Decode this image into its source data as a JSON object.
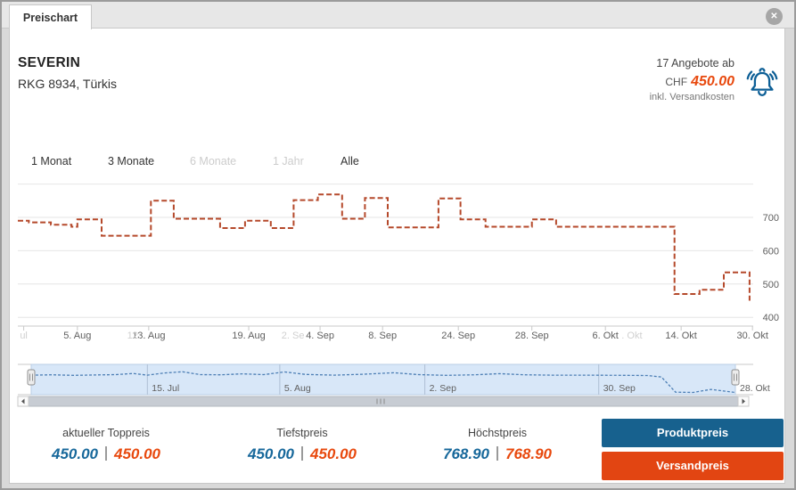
{
  "window": {
    "tab": "Preischart",
    "close_glyph": "✕"
  },
  "product": {
    "brand": "SEVERIN",
    "model": "RKG 8934, Türkis"
  },
  "offer": {
    "count": "17 Angebote ab",
    "currency": "CHF",
    "price": "450.00",
    "shipping_note": "inkl. Versandkosten"
  },
  "ranges": [
    {
      "label": "1 Monat",
      "enabled": true
    },
    {
      "label": "3 Monate",
      "enabled": true
    },
    {
      "label": "6 Monate",
      "enabled": false
    },
    {
      "label": "1 Jahr",
      "enabled": false
    },
    {
      "label": "Alle",
      "enabled": true
    }
  ],
  "stats": [
    {
      "label": "aktueller Toppreis",
      "product": "450.00",
      "shipping": "450.00"
    },
    {
      "label": "Tiefstpreis",
      "product": "450.00",
      "shipping": "450.00"
    },
    {
      "label": "Höchstpreis",
      "product": "768.90",
      "shipping": "768.90"
    }
  ],
  "legend": [
    {
      "label": "Produktpreis"
    },
    {
      "label": "Versandpreis"
    }
  ],
  "colors": {
    "line": "#b5492b",
    "nav_line": "#4d7fb5",
    "nav_fill": "#d8e7f8",
    "nav_border": "#b9cde4",
    "nav_grid": "#aebfd4",
    "grid": "#e6e6e6",
    "axis": "#c9c9c9",
    "tick_label": "#606060",
    "ghost": "#d0d0d0",
    "value_blue": "#17689b",
    "value_orange": "#e8490e",
    "btn_blue": "#17618e",
    "btn_orange": "#e24512",
    "bell": "#0d5f96"
  },
  "chart_data": {
    "type": "line",
    "title": "Preischart",
    "main": {
      "step": true,
      "unit": "CHF",
      "ylim": [
        400,
        800
      ],
      "y_ticks": [
        700,
        600,
        500,
        400
      ],
      "y_gridlines": [
        800,
        700,
        600,
        500,
        400
      ],
      "x_ticks": [
        {
          "pos": 0.081,
          "label": "5. Aug"
        },
        {
          "pos": 0.178,
          "label": "13. Aug"
        },
        {
          "pos": 0.314,
          "label": "19. Aug"
        },
        {
          "pos": 0.411,
          "label": "4. Sep"
        },
        {
          "pos": 0.496,
          "label": "8. Sep"
        },
        {
          "pos": 0.599,
          "label": "24. Sep"
        },
        {
          "pos": 0.699,
          "label": "28. Sep"
        },
        {
          "pos": 0.799,
          "label": "6. Okt"
        },
        {
          "pos": 0.902,
          "label": "14. Okt"
        },
        {
          "pos": 0.999,
          "label": "30. Okt"
        }
      ],
      "x_ticks_ghost": [
        {
          "pos": 0.008,
          "label": "ul",
          "tick": true
        },
        {
          "pos": 0.158,
          "label": "12."
        },
        {
          "pos": 0.374,
          "label": "2. Se"
        },
        {
          "pos": 0.835,
          "label": ". Okt"
        }
      ],
      "points": [
        [
          0.0,
          690
        ],
        [
          0.015,
          685
        ],
        [
          0.045,
          678
        ],
        [
          0.073,
          672
        ],
        [
          0.081,
          694
        ],
        [
          0.114,
          645
        ],
        [
          0.181,
          750
        ],
        [
          0.212,
          696
        ],
        [
          0.275,
          668
        ],
        [
          0.309,
          690
        ],
        [
          0.344,
          668
        ],
        [
          0.375,
          752
        ],
        [
          0.408,
          768.9
        ],
        [
          0.441,
          696
        ],
        [
          0.472,
          758
        ],
        [
          0.503,
          670
        ],
        [
          0.572,
          757
        ],
        [
          0.602,
          694
        ],
        [
          0.636,
          672
        ],
        [
          0.699,
          694
        ],
        [
          0.732,
          672
        ],
        [
          0.893,
          470
        ],
        [
          0.927,
          483
        ],
        [
          0.96,
          535
        ],
        [
          0.995,
          450
        ]
      ]
    },
    "navigator": {
      "ticks": [
        {
          "pos": 0.165,
          "label": "15. Jul",
          "line": true
        },
        {
          "pos": 0.353,
          "label": "5. Aug",
          "line": true
        },
        {
          "pos": 0.559,
          "label": "2. Sep",
          "line": true
        },
        {
          "pos": 0.806,
          "label": "30. Sep",
          "line": true
        },
        {
          "pos": 1.0,
          "label": "28. Okt",
          "line": false
        }
      ],
      "points": [
        [
          0.0,
          672
        ],
        [
          0.03,
          676
        ],
        [
          0.06,
          670
        ],
        [
          0.09,
          674
        ],
        [
          0.12,
          678
        ],
        [
          0.145,
          692
        ],
        [
          0.165,
          672
        ],
        [
          0.19,
          698
        ],
        [
          0.215,
          712
        ],
        [
          0.24,
          678
        ],
        [
          0.27,
          676
        ],
        [
          0.3,
          688
        ],
        [
          0.33,
          678
        ],
        [
          0.36,
          710
        ],
        [
          0.39,
          680
        ],
        [
          0.43,
          672
        ],
        [
          0.47,
          682
        ],
        [
          0.515,
          700
        ],
        [
          0.55,
          678
        ],
        [
          0.59,
          670
        ],
        [
          0.63,
          676
        ],
        [
          0.665,
          690
        ],
        [
          0.7,
          676
        ],
        [
          0.74,
          672
        ],
        [
          0.79,
          672
        ],
        [
          0.84,
          670
        ],
        [
          0.875,
          668
        ],
        [
          0.895,
          650
        ],
        [
          0.915,
          470
        ],
        [
          0.94,
          466
        ],
        [
          0.965,
          502
        ],
        [
          0.98,
          488
        ],
        [
          1.0,
          466
        ]
      ]
    }
  }
}
